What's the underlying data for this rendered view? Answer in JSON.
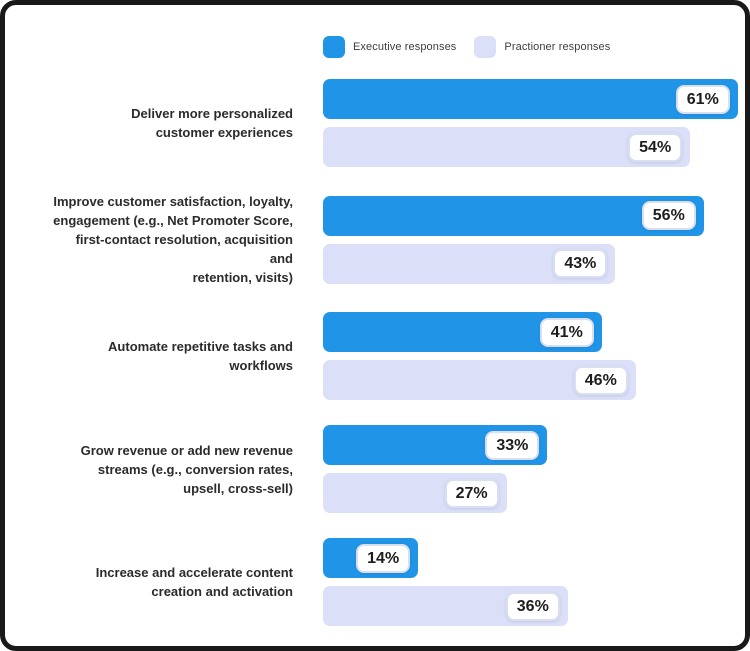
{
  "frame": {
    "background": "#ffffff",
    "border_color": "#191919"
  },
  "legend": {
    "position": "top",
    "items": [
      {
        "label": "Executive responses",
        "color": "#2095E8"
      },
      {
        "label": "Practioner responses",
        "color": "#DBE0F8"
      }
    ]
  },
  "chart_data": {
    "type": "bar",
    "orientation": "horizontal",
    "title": "",
    "xlabel": "",
    "ylabel": "",
    "xlim": [
      0,
      100
    ],
    "grid": false,
    "legend_position": "top",
    "value_unit": "%",
    "categories": [
      "Deliver more personalized\ncustomer experiences",
      "Improve customer satisfaction, loyalty,\nengagement (e.g., Net Promoter Score,\nfirst-contact resolution, acquisition and\nretention, visits)",
      "Automate repetitive tasks and workflows",
      "Grow revenue or add new revenue\nstreams (e.g., conversion rates,\nupsell, cross-sell)",
      "Increase and accelerate content\ncreation and activation"
    ],
    "series": [
      {
        "name": "Executive responses",
        "color": "#2095E8",
        "values": [
          61,
          56,
          41,
          33,
          14
        ],
        "labels": [
          "61%",
          "56%",
          "41%",
          "33%",
          "14%"
        ]
      },
      {
        "name": "Practioner responses",
        "color": "#DBE0F8",
        "values": [
          54,
          43,
          46,
          27,
          36
        ],
        "labels": [
          "54%",
          "43%",
          "46%",
          "27%",
          "36%"
        ]
      }
    ]
  }
}
